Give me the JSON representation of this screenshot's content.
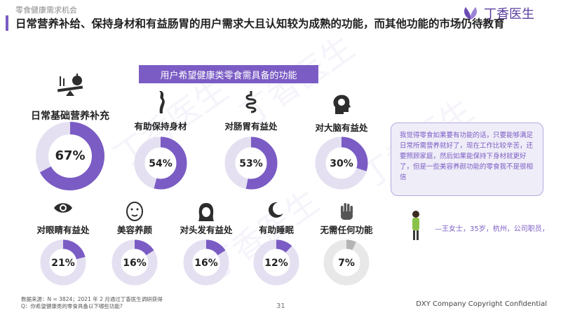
{
  "header": {
    "section_label": "零食健康需求机会",
    "title": "日常营养补给、保持身材和有益肠胃的用户需求大且认知较为成熟的功能，而其他功能的市场仍待教育",
    "logo_text": "丁香医生"
  },
  "watermark": "丁香医生",
  "colors": {
    "accent": "#7b5cc4",
    "track": "#e4e0f1",
    "neutral": "#b4b4b4",
    "neutral_track": "#e8e8e8"
  },
  "chart_data": {
    "type": "donut",
    "title": "用户希望健康类零食需具备的功能",
    "unit": "%",
    "items": [
      {
        "label": "日常基础营养补充",
        "value": 67,
        "value_label": "67%",
        "icon": "nutrition-balance-icon",
        "color": "#7b5cc4"
      },
      {
        "label": "有助保持身材",
        "value": 54,
        "value_label": "54%",
        "icon": "body-figure-icon",
        "color": "#7b5cc4"
      },
      {
        "label": "对肠胃有益处",
        "value": 53,
        "value_label": "53%",
        "icon": "intestine-icon",
        "color": "#7b5cc4"
      },
      {
        "label": "对大脑有益处",
        "value": 30,
        "value_label": "30%",
        "icon": "brain-head-icon",
        "color": "#7b5cc4"
      },
      {
        "label": "对眼睛有益处",
        "value": 21,
        "value_label": "21%",
        "icon": "eye-icon",
        "color": "#7b5cc4"
      },
      {
        "label": "美容养颜",
        "value": 16,
        "value_label": "16%",
        "icon": "face-mask-icon",
        "color": "#7b5cc4"
      },
      {
        "label": "对头发有益处",
        "value": 16,
        "value_label": "16%",
        "icon": "hair-icon",
        "color": "#7b5cc4"
      },
      {
        "label": "有助睡眠",
        "value": 12,
        "value_label": "12%",
        "icon": "moon-icon",
        "color": "#7b5cc4"
      },
      {
        "label": "无需任何功能",
        "value": 7,
        "value_label": "7%",
        "icon": "hand-stop-icon",
        "color": "#b4b4b4"
      }
    ]
  },
  "quote": {
    "text": "我觉得零食如果要有功能的话，只要能够满足日常所需营养就好了，现在工作比较辛苦，还要照顾家庭，然后如果能保持下身材就更好了，但是一些美容养颜功能的零食我不是很相信",
    "attribution": "—王女士，35岁，杭州，公司职员，"
  },
  "footer": {
    "source": "数据来源：N = 3824；2021 年 2 月通过丁香医生调研获得",
    "question": "Q：你希望健康类的零食具备以下哪些功能?",
    "page_number": "31",
    "copyright": "DXY Company Copyright Confidential"
  }
}
